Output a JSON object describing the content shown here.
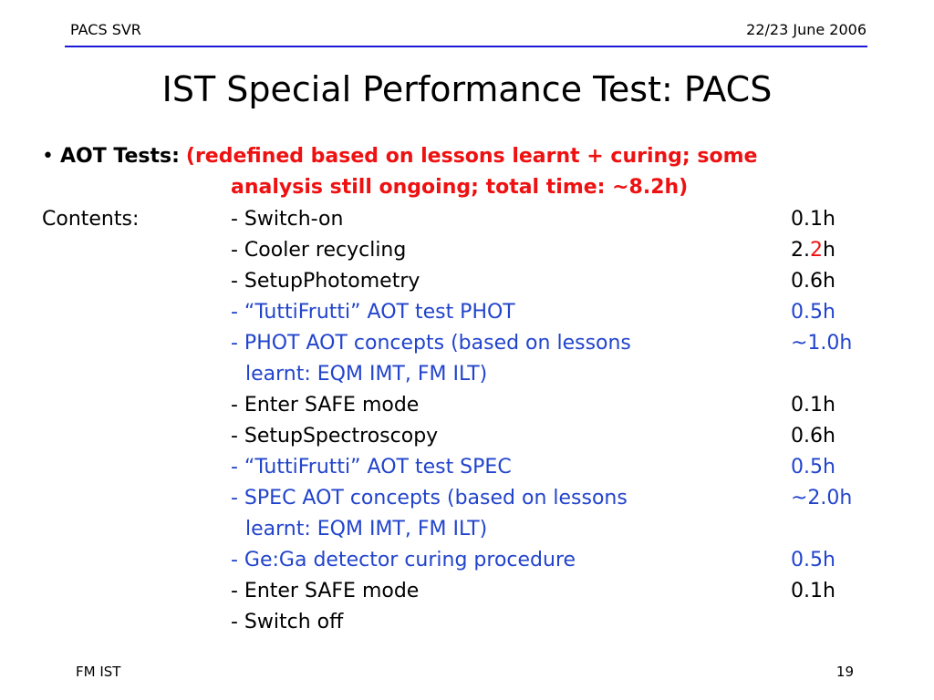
{
  "header": {
    "left": "PACS SVR",
    "right": "22/23 June 2006"
  },
  "slide": {
    "title": "IST Special Performance Test: PACS",
    "bullet_symbol": "•",
    "bullet_label": "AOT Tests:",
    "bullet_note_line1": "(redefined based on lessons learnt + curing; some",
    "bullet_note_line2": "analysis still ongoing; total time: ~8.2h)",
    "contents_label": "Contents:",
    "items": [
      {
        "text": "- Switch-on",
        "time": "0.1h",
        "color": "#000000"
      },
      {
        "text": "- Cooler recycling",
        "time_a": "2.",
        "time_b": "2",
        "time_c": "h",
        "color": "#000000"
      },
      {
        "text": "- SetupPhotometry",
        "time": "0.6h",
        "color": "#000000"
      },
      {
        "text": "- “TuttiFrutti” AOT test PHOT",
        "time": "0.5h",
        "color": "#2244cc"
      },
      {
        "text": "- PHOT AOT concepts (based on lessons",
        "time": "~1.0h",
        "color": "#2244cc"
      },
      {
        "text": "learnt: EQM IMT, FM ILT)",
        "time": "",
        "color": "#2244cc"
      },
      {
        "text": "- Enter SAFE mode",
        "time": "0.1h",
        "color": "#000000"
      },
      {
        "text": "- SetupSpectroscopy",
        "time": "0.6h",
        "color": "#000000"
      },
      {
        "text": "- “TuttiFrutti” AOT test SPEC",
        "time": "0.5h",
        "color": "#2244cc"
      },
      {
        "text": "- SPEC AOT concepts (based on lessons",
        "time": "~2.0h",
        "color": "#2244cc"
      },
      {
        "text": "learnt: EQM IMT, FM ILT)",
        "time": "",
        "color": "#2244cc"
      },
      {
        "text": "- Ge:Ga detector curing procedure",
        "time": "0.5h",
        "color": "#2244cc"
      },
      {
        "text": "- Enter SAFE mode",
        "time": "0.1h",
        "color": "#000000"
      },
      {
        "text": "- Switch off",
        "time": "",
        "color": "#000000"
      }
    ]
  },
  "footer": {
    "left": "FM IST",
    "page_number": "19"
  },
  "colors": {
    "rule": "#1a1ad6",
    "highlight_red": "#ee1111",
    "highlight_blue": "#2244cc"
  }
}
